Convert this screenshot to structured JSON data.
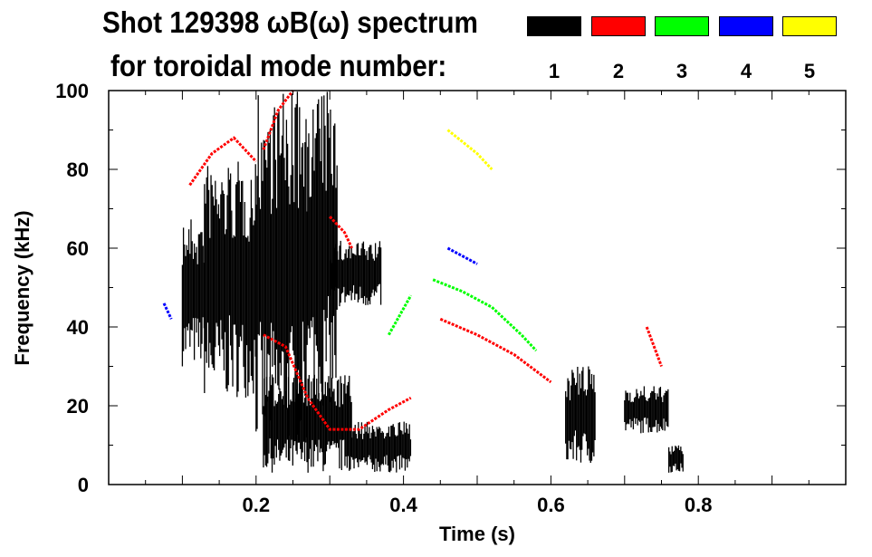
{
  "title_line1": "Shot 129398 ωB(ω) spectrum",
  "title_line2": "for toroidal mode number:",
  "legend": [
    {
      "label": "1",
      "color": "#000000"
    },
    {
      "label": "2",
      "color": "#ff0000"
    },
    {
      "label": "3",
      "color": "#00ff00"
    },
    {
      "label": "4",
      "color": "#0000ff"
    },
    {
      "label": "5",
      "color": "#ffff00"
    }
  ],
  "chart_data": {
    "type": "heatmap",
    "title": "Shot 129398 ωB(ω) spectrum for toroidal mode number",
    "xlabel": "Time (s)",
    "ylabel": "Frequency (kHz)",
    "xlim": [
      0,
      1.0
    ],
    "ylim": [
      0,
      100
    ],
    "xticks": [
      "0.2",
      "0.4",
      "0.6",
      "0.8"
    ],
    "xtick_values": [
      0.2,
      0.4,
      0.6,
      0.8
    ],
    "yticks": [
      "0",
      "20",
      "40",
      "60",
      "80",
      "100"
    ],
    "ytick_values": [
      0,
      20,
      40,
      60,
      80,
      100
    ],
    "mode_regions": [
      {
        "mode": "1",
        "t": [
          0.1,
          0.13
        ],
        "f": [
          30,
          68
        ]
      },
      {
        "mode": "1",
        "t": [
          0.13,
          0.2
        ],
        "f": [
          22,
          82
        ]
      },
      {
        "mode": "1",
        "t": [
          0.2,
          0.27
        ],
        "f": [
          10,
          100
        ]
      },
      {
        "mode": "1",
        "t": [
          0.21,
          0.33
        ],
        "f": [
          3,
          28
        ]
      },
      {
        "mode": "1",
        "t": [
          0.27,
          0.31
        ],
        "f": [
          20,
          100
        ]
      },
      {
        "mode": "1",
        "t": [
          0.3,
          0.37
        ],
        "f": [
          45,
          62
        ]
      },
      {
        "mode": "1",
        "t": [
          0.33,
          0.41
        ],
        "f": [
          3,
          16
        ]
      },
      {
        "mode": "1",
        "t": [
          0.62,
          0.66
        ],
        "f": [
          5,
          30
        ]
      },
      {
        "mode": "1",
        "t": [
          0.7,
          0.76
        ],
        "f": [
          13,
          25
        ]
      },
      {
        "mode": "1",
        "t": [
          0.76,
          0.78
        ],
        "f": [
          3,
          10
        ]
      }
    ],
    "mode_traces": [
      {
        "mode": "2",
        "t": [
          0.11,
          0.14,
          0.17,
          0.2
        ],
        "f": [
          76,
          84,
          88,
          82
        ]
      },
      {
        "mode": "2",
        "t": [
          0.21,
          0.23,
          0.25
        ],
        "f": [
          85,
          95,
          100
        ]
      },
      {
        "mode": "2",
        "t": [
          0.21,
          0.24,
          0.27,
          0.3,
          0.34,
          0.38,
          0.41
        ],
        "f": [
          38,
          35,
          22,
          14,
          14,
          19,
          22
        ]
      },
      {
        "mode": "2",
        "t": [
          0.3,
          0.32,
          0.33
        ],
        "f": [
          68,
          64,
          60
        ]
      },
      {
        "mode": "2",
        "t": [
          0.45,
          0.5,
          0.55,
          0.6
        ],
        "f": [
          42,
          38,
          33,
          26
        ]
      },
      {
        "mode": "2",
        "t": [
          0.73,
          0.75
        ],
        "f": [
          40,
          30
        ]
      },
      {
        "mode": "3",
        "t": [
          0.44,
          0.48,
          0.52,
          0.56,
          0.58
        ],
        "f": [
          52,
          49,
          45,
          38,
          34
        ]
      },
      {
        "mode": "3",
        "t": [
          0.38,
          0.41
        ],
        "f": [
          38,
          48
        ]
      },
      {
        "mode": "4",
        "t": [
          0.075,
          0.085
        ],
        "f": [
          46,
          42
        ]
      },
      {
        "mode": "4",
        "t": [
          0.46,
          0.5
        ],
        "f": [
          60,
          56
        ]
      },
      {
        "mode": "5",
        "t": [
          0.46,
          0.5,
          0.52
        ],
        "f": [
          90,
          84,
          80
        ]
      }
    ]
  }
}
